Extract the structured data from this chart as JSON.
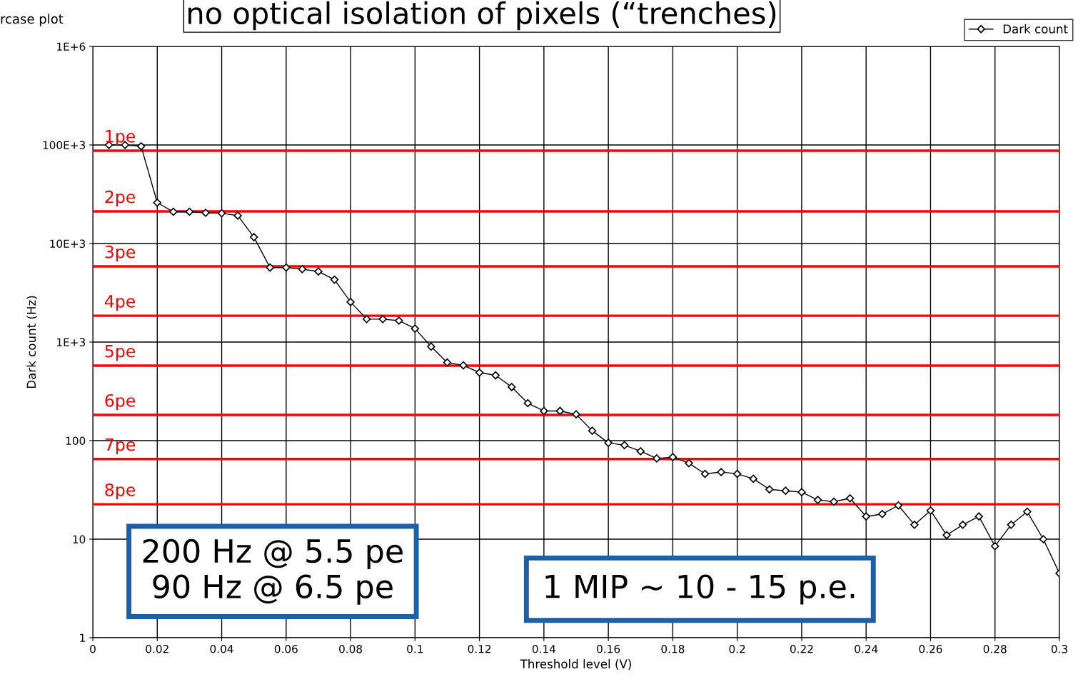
{
  "chart_data": {
    "type": "line",
    "title": "no optical isolation of pixels (“trenches)",
    "xlabel": "Threshold level (V)",
    "ylabel": "Dark count (Hz)",
    "x": [
      0.005,
      0.01,
      0.015,
      0.02,
      0.025,
      0.03,
      0.035,
      0.04,
      0.045,
      0.05,
      0.055,
      0.06,
      0.065,
      0.07,
      0.075,
      0.08,
      0.085,
      0.09,
      0.095,
      0.1,
      0.105,
      0.11,
      0.115,
      0.12,
      0.125,
      0.13,
      0.135,
      0.14,
      0.145,
      0.15,
      0.155,
      0.16,
      0.165,
      0.17,
      0.175,
      0.18,
      0.185,
      0.19,
      0.195,
      0.2,
      0.205,
      0.21,
      0.215,
      0.22,
      0.225,
      0.23,
      0.235,
      0.24,
      0.245,
      0.25,
      0.255,
      0.26,
      0.265,
      0.27,
      0.275,
      0.28,
      0.285,
      0.29,
      0.295,
      0.3
    ],
    "series": [
      {
        "name": "Dark count",
        "color": "#000000",
        "values": [
          100000,
          100000,
          97000,
          26000,
          21000,
          21000,
          20500,
          20300,
          19200,
          11600,
          5700,
          5700,
          5500,
          5200,
          4300,
          2550,
          1710,
          1710,
          1650,
          1370,
          900,
          620,
          580,
          490,
          460,
          350,
          240,
          200,
          200,
          185,
          126,
          95,
          90,
          78,
          66,
          68,
          59,
          46,
          48,
          46,
          41,
          32,
          31,
          30,
          25,
          24,
          26,
          17,
          18,
          22,
          14,
          19.5,
          11,
          14,
          17,
          8.5,
          14,
          19,
          10,
          4.5
        ]
      }
    ],
    "log": "y",
    "xlim": [
      0,
      0.3
    ],
    "ylim": [
      1,
      1000000
    ],
    "xticks": [
      0,
      0.02,
      0.04,
      0.06,
      0.08,
      0.1,
      0.12,
      0.14,
      0.16,
      0.18,
      0.2,
      0.22,
      0.24,
      0.26,
      0.28,
      0.3
    ],
    "yticks": [
      1,
      10,
      100,
      {
        "value": 1000,
        "label": "1E+3"
      },
      {
        "value": 10000,
        "label": "10E+3"
      },
      {
        "value": 100000,
        "label": "100E+3"
      },
      {
        "value": 1000000,
        "label": "1E+6"
      }
    ],
    "grid": true,
    "legend": "top right",
    "marker": "diamond",
    "line_style": "solid",
    "ref_lines": [
      {
        "axis": "y",
        "value": 87500,
        "label": "1pe",
        "color": "#ff0000"
      },
      {
        "axis": "y",
        "value": 21200,
        "label": "2pe",
        "color": "#ff0000"
      },
      {
        "axis": "y",
        "value": 5870,
        "label": "3pe",
        "color": "#ff0000"
      },
      {
        "axis": "y",
        "value": 1850,
        "label": "4pe",
        "color": "#ff0000"
      },
      {
        "axis": "y",
        "value": 577,
        "label": "5pe",
        "color": "#ff0000"
      },
      {
        "axis": "y",
        "value": 182,
        "label": "6pe",
        "color": "#ff0000"
      },
      {
        "axis": "y",
        "value": 65,
        "label": "7pe",
        "color": "#ff0000"
      },
      {
        "axis": "y",
        "value": 22.6,
        "label": "8pe",
        "color": "#ff0000"
      }
    ],
    "annotations": [
      "rcase plot",
      "200 Hz @ 5.5 pe\n90 Hz @ 6.5 pe",
      "1 MIP ~ 10 - 15 p.e."
    ]
  }
}
